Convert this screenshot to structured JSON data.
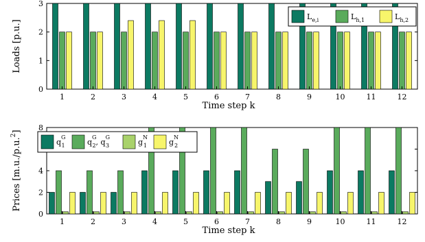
{
  "colors": {
    "dark_green": "#0c7a62",
    "mid_green": "#5aab5c",
    "light_green": "#a9d26b",
    "yellow": "#f7f56b"
  },
  "chart_data": [
    {
      "type": "bar",
      "xlabel": "Time step k",
      "ylabel": "Loads [p.u.]",
      "ylim": [
        0,
        3
      ],
      "yticks": [
        "0",
        "1",
        "2",
        "3"
      ],
      "categories": [
        "1",
        "2",
        "3",
        "4",
        "5",
        "6",
        "7",
        "8",
        "9",
        "10",
        "11",
        "12"
      ],
      "legend_position": "top-right",
      "series": [
        {
          "name": "L_{e,i}",
          "legend_main": "L",
          "legend_sub": "e,i",
          "color_key": "dark_green",
          "values": [
            3,
            3,
            3,
            3,
            3,
            3,
            3,
            3,
            3,
            3,
            3,
            3
          ]
        },
        {
          "name": "L_{h,1}",
          "legend_main": "L",
          "legend_sub": "h,1",
          "color_key": "mid_green",
          "values": [
            2,
            2,
            2,
            2,
            2,
            2,
            2,
            2,
            2,
            2,
            2,
            2
          ]
        },
        {
          "name": "L_{h,2}",
          "legend_main": "L",
          "legend_sub": "h,2",
          "color_key": "yellow",
          "values": [
            2,
            2,
            2.4,
            2.4,
            2.4,
            2,
            2,
            2,
            2,
            2,
            2,
            2
          ]
        }
      ]
    },
    {
      "type": "bar",
      "xlabel": "Time step k",
      "ylabel": "Prices [m.u./p.u.",
      "ylabel_sup": "2",
      "ylabel_end": "]",
      "ylim": [
        0,
        8
      ],
      "yticks": [
        "0",
        "2",
        "4",
        "6",
        "8"
      ],
      "categories": [
        "1",
        "2",
        "3",
        "4",
        "5",
        "6",
        "7",
        "8",
        "9",
        "10",
        "11",
        "12"
      ],
      "legend_position": "top-left",
      "series": [
        {
          "name": "q_1^G",
          "legend_parts": [
            {
              "t": "q",
              "sub": "1",
              "sup": "G"
            }
          ],
          "color_key": "dark_green",
          "values": [
            2,
            2,
            2,
            4,
            4,
            4,
            4,
            3,
            3,
            4,
            4,
            4
          ]
        },
        {
          "name": "q_2^G, q_3^G",
          "legend_parts": [
            {
              "t": "q",
              "sub": "2",
              "sup": "G"
            },
            {
              "t": ", q",
              "sub": "3",
              "sup": "G"
            }
          ],
          "color_key": "mid_green",
          "values": [
            4,
            4,
            4,
            8,
            8,
            8,
            8,
            6,
            6,
            8,
            8,
            8
          ]
        },
        {
          "name": "g_1^N",
          "legend_parts": [
            {
              "t": "g",
              "sub": "1",
              "sup": "N"
            }
          ],
          "color_key": "light_green",
          "values": [
            0.2,
            0.2,
            0.2,
            0.2,
            0.2,
            0.2,
            0.2,
            0.2,
            0.2,
            0.2,
            0.2,
            0.2
          ]
        },
        {
          "name": "g_2^N",
          "legend_parts": [
            {
              "t": "g",
              "sub": "2",
              "sup": "N"
            }
          ],
          "color_key": "yellow",
          "values": [
            2,
            2,
            2,
            2,
            2,
            2,
            2,
            2,
            2,
            2,
            2,
            2
          ]
        }
      ]
    }
  ]
}
